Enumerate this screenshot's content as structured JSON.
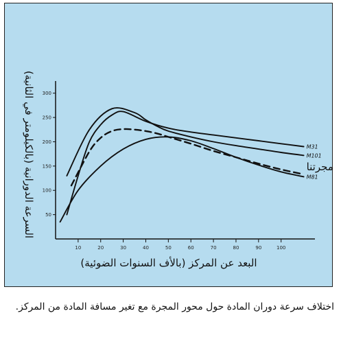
{
  "caption": "اختلاف سرعة دوران المادة حول محور المجرة مع تغير مسافة المادة من المركز.",
  "chart_data": {
    "type": "line",
    "xlabel": "البعد عن المركز (بالأف السنوات الضوئية)",
    "ylabel": "السرعة الدورانية (بالكيلومتر في الثانية)",
    "xlim": [
      0,
      115
    ],
    "ylim": [
      0,
      325
    ],
    "x_ticks": [
      10,
      20,
      30,
      40,
      50,
      60,
      70,
      80,
      90,
      100
    ],
    "y_ticks": [
      50,
      100,
      150,
      200,
      250,
      300
    ],
    "x_tick_labels": [
      "10",
      "20",
      "30",
      "40",
      "50",
      "60",
      "70",
      "80",
      "90",
      "100"
    ],
    "y_tick_labels": [
      "50",
      "100",
      "150",
      "200",
      "250",
      "300"
    ],
    "grid": false,
    "series": [
      {
        "name": "M31",
        "style": "solid",
        "x": [
          5,
          10,
          15,
          20,
          25,
          30,
          40,
          50,
          60,
          70,
          80,
          90,
          100,
          110
        ],
        "y": [
          50,
          130,
          200,
          235,
          255,
          262,
          242,
          228,
          220,
          214,
          208,
          202,
          196,
          190
        ]
      },
      {
        "name": "M101",
        "style": "solid",
        "x": [
          5,
          15,
          25,
          35,
          40,
          45,
          50,
          60,
          70,
          80,
          90,
          100,
          110
        ],
        "y": [
          130,
          225,
          268,
          260,
          245,
          232,
          222,
          210,
          200,
          192,
          185,
          178,
          172
        ]
      },
      {
        "name": "مجرتنا",
        "style": "dashed",
        "x": [
          7,
          15,
          20,
          25,
          30,
          35,
          40,
          45,
          50,
          60,
          70,
          80,
          90,
          100,
          110
        ],
        "y": [
          110,
          180,
          208,
          222,
          226,
          225,
          222,
          217,
          210,
          196,
          181,
          168,
          155,
          143,
          133
        ]
      },
      {
        "name": "M81",
        "style": "solid",
        "x": [
          2,
          10,
          20,
          30,
          40,
          50,
          60,
          70,
          80,
          90,
          100,
          110
        ],
        "y": [
          35,
          100,
          150,
          185,
          205,
          210,
          202,
          186,
          168,
          152,
          138,
          128
        ]
      }
    ]
  },
  "colors": {
    "background": "#b6dcef",
    "line": "#111111"
  }
}
